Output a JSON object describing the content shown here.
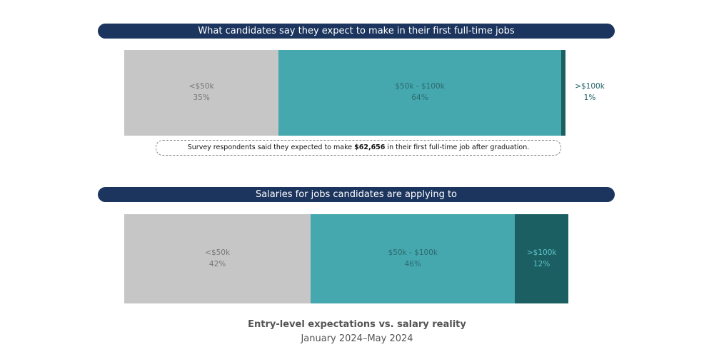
{
  "chart_data": [
    {
      "type": "bar",
      "orientation": "horizontal-stacked-100",
      "title": "What candidates say they expect to make in their first full-time jobs",
      "categories": [
        "<$50k",
        "$50k - $100k",
        ">$100k"
      ],
      "values": [
        35,
        64,
        1
      ],
      "labels": [
        "35%",
        "64%",
        "1%"
      ],
      "colors": [
        "#c6c6c6",
        "#44a8ae",
        "#1b5f62"
      ],
      "label_colors": [
        "#777777",
        "#2d6a6e",
        "#1b5f62"
      ],
      "annotation": {
        "pre": "Survey respondents said they expected to make ",
        "value": "$62,656",
        "post": " in their first full-time job after graduation."
      }
    },
    {
      "type": "bar",
      "orientation": "horizontal-stacked-100",
      "title": "Salaries for jobs candidates are applying to",
      "categories": [
        "<$50k",
        "$50k - $100k",
        ">$100k"
      ],
      "values": [
        42,
        46,
        12
      ],
      "labels": [
        "42%",
        "46%",
        "12%"
      ],
      "colors": [
        "#c6c6c6",
        "#44a8ae",
        "#1b5f62"
      ],
      "label_colors": [
        "#777777",
        "#2d6a6e",
        "#5cc3c8"
      ]
    }
  ],
  "footer": {
    "title": "Entry-level  expectations vs. salary reality",
    "subtitle": "January 2024–May 2024"
  }
}
